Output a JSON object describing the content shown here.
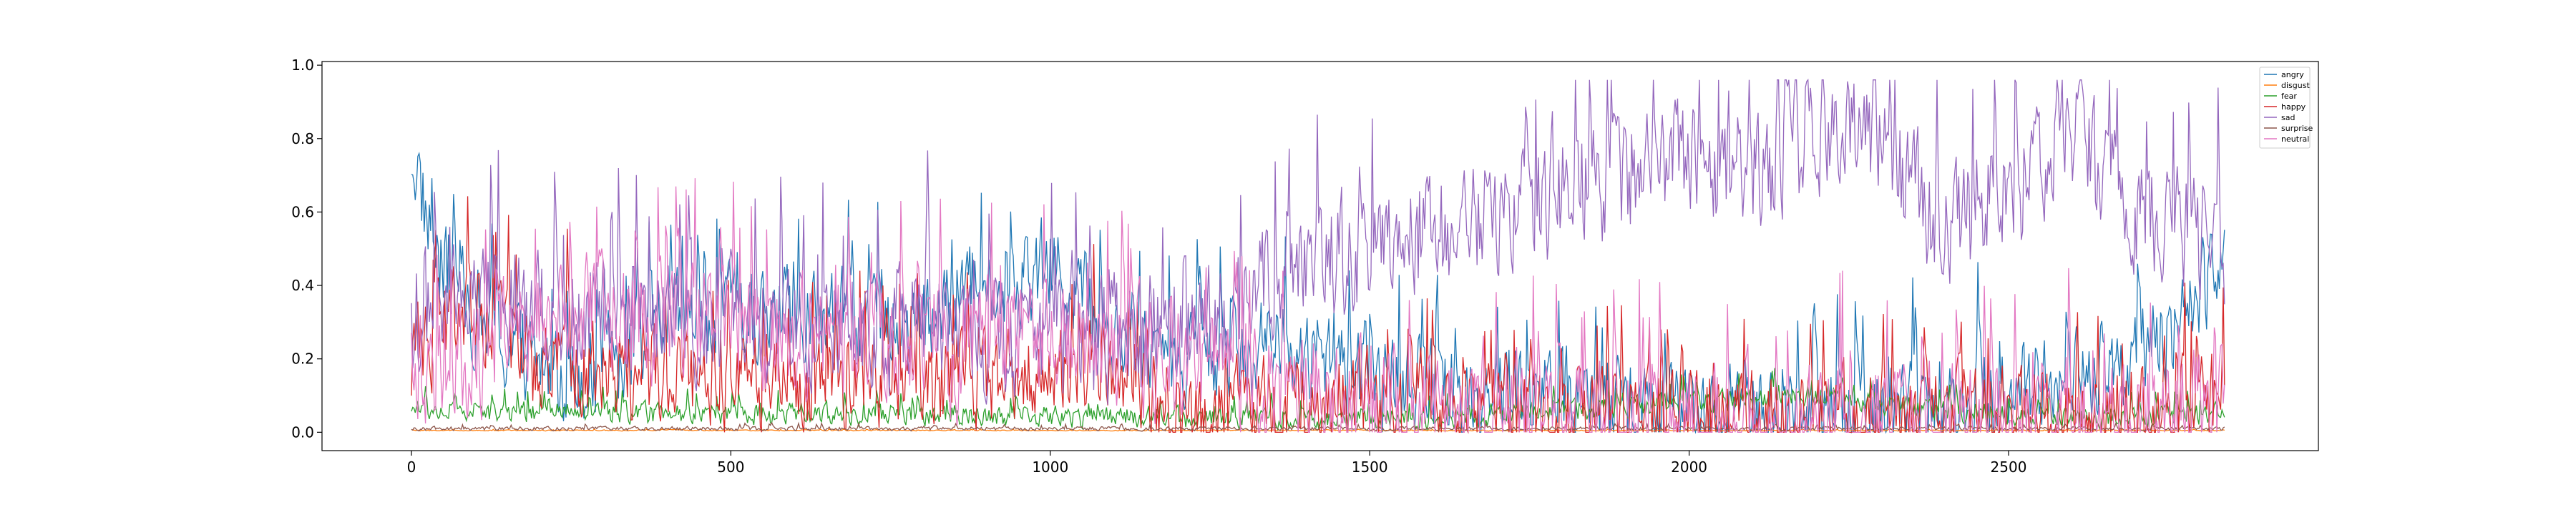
{
  "chart_data": {
    "type": "line",
    "title": "",
    "xlabel": "",
    "ylabel": "",
    "xlim": [
      -140,
      2985
    ],
    "ylim": [
      -0.05,
      1.01
    ],
    "x_ticks": [
      0,
      500,
      1000,
      1500,
      2000,
      2500
    ],
    "x_tick_labels": [
      "0",
      "500",
      "1000",
      "1500",
      "2000",
      "2500"
    ],
    "y_ticks": [
      0.0,
      0.2,
      0.4,
      0.6,
      0.8,
      1.0
    ],
    "y_tick_labels": [
      "0.0",
      "0.2",
      "0.4",
      "0.6",
      "0.8",
      "1.0"
    ],
    "grid": false,
    "legend_position": "top-right",
    "n_frames": 2840,
    "series": [
      {
        "name": "angry",
        "color": "#1f77b4",
        "keyframes": [
          [
            0,
            0.77
          ],
          [
            40,
            0.45
          ],
          [
            150,
            0.22
          ],
          [
            250,
            0.15
          ],
          [
            400,
            0.3
          ],
          [
            600,
            0.32
          ],
          [
            800,
            0.3
          ],
          [
            900,
            0.42
          ],
          [
            1000,
            0.45
          ],
          [
            1100,
            0.3
          ],
          [
            1200,
            0.2
          ],
          [
            1300,
            0.25
          ],
          [
            1400,
            0.2
          ],
          [
            1600,
            0.12
          ],
          [
            1800,
            0.1
          ],
          [
            2000,
            0.08
          ],
          [
            2200,
            0.05
          ],
          [
            2400,
            0.1
          ],
          [
            2600,
            0.15
          ],
          [
            2700,
            0.22
          ],
          [
            2780,
            0.3
          ],
          [
            2840,
            0.55
          ]
        ]
      },
      {
        "name": "disgust",
        "color": "#ff7f0e",
        "keyframes": [
          [
            0,
            0.005
          ],
          [
            2840,
            0.005
          ]
        ]
      },
      {
        "name": "fear",
        "color": "#2ca02c",
        "keyframes": [
          [
            0,
            0.06
          ],
          [
            400,
            0.05
          ],
          [
            800,
            0.05
          ],
          [
            1200,
            0.04
          ],
          [
            1600,
            0.04
          ],
          [
            2000,
            0.08
          ],
          [
            2200,
            0.1
          ],
          [
            2400,
            0.06
          ],
          [
            2600,
            0.04
          ],
          [
            2840,
            0.05
          ]
        ]
      },
      {
        "name": "happy",
        "color": "#d62728",
        "keyframes": [
          [
            0,
            0.2
          ],
          [
            80,
            0.35
          ],
          [
            130,
            0.3
          ],
          [
            200,
            0.2
          ],
          [
            400,
            0.15
          ],
          [
            700,
            0.12
          ],
          [
            900,
            0.15
          ],
          [
            1100,
            0.2
          ],
          [
            1200,
            0.05
          ],
          [
            1400,
            0.08
          ],
          [
            1500,
            0.1
          ],
          [
            1700,
            0.05
          ],
          [
            2000,
            0.04
          ],
          [
            2500,
            0.05
          ],
          [
            2700,
            0.06
          ],
          [
            2840,
            0.07
          ]
        ]
      },
      {
        "name": "sad",
        "color": "#9467bd",
        "keyframes": [
          [
            0,
            0.3
          ],
          [
            150,
            0.35
          ],
          [
            300,
            0.35
          ],
          [
            500,
            0.3
          ],
          [
            800,
            0.3
          ],
          [
            1100,
            0.25
          ],
          [
            1250,
            0.3
          ],
          [
            1400,
            0.45
          ],
          [
            1600,
            0.55
          ],
          [
            1800,
            0.65
          ],
          [
            1900,
            0.7
          ],
          [
            2000,
            0.75
          ],
          [
            2100,
            0.7
          ],
          [
            2200,
            0.8
          ],
          [
            2300,
            0.78
          ],
          [
            2400,
            0.55
          ],
          [
            2500,
            0.7
          ],
          [
            2600,
            0.8
          ],
          [
            2700,
            0.6
          ],
          [
            2780,
            0.55
          ],
          [
            2840,
            0.5
          ]
        ]
      },
      {
        "name": "surprise",
        "color": "#8c564b",
        "keyframes": [
          [
            0,
            0.01
          ],
          [
            2840,
            0.01
          ]
        ]
      },
      {
        "name": "neutral",
        "color": "#e377c2",
        "keyframes": [
          [
            0,
            0.15
          ],
          [
            200,
            0.3
          ],
          [
            400,
            0.3
          ],
          [
            700,
            0.25
          ],
          [
            900,
            0.25
          ],
          [
            1100,
            0.25
          ],
          [
            1250,
            0.15
          ],
          [
            1500,
            0.06
          ],
          [
            1800,
            0.04
          ],
          [
            2200,
            0.03
          ],
          [
            2500,
            0.04
          ],
          [
            2840,
            0.05
          ]
        ]
      }
    ]
  }
}
